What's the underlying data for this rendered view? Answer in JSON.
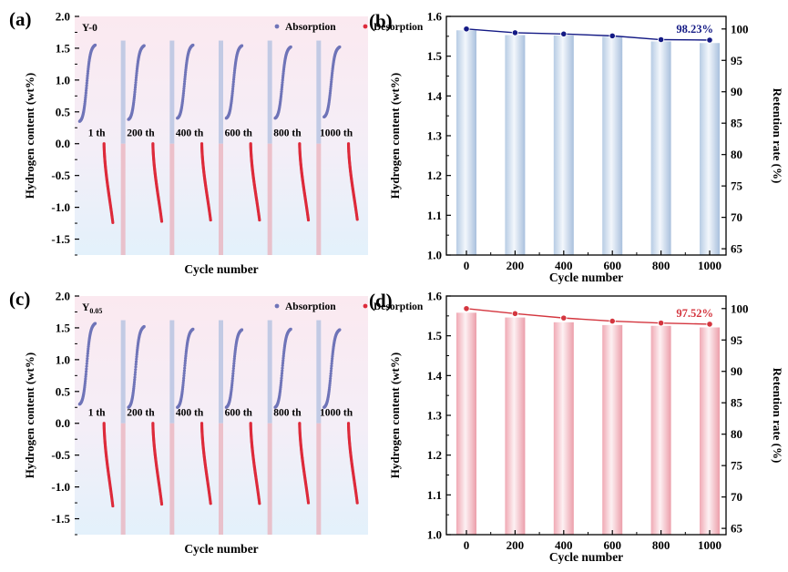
{
  "colors": {
    "absorption": "#6f74b8",
    "desorption": "#dd2a3a",
    "bar_blue": "#aac2dc",
    "bar_red": "#eaa0aa",
    "line_blue": "#141a85",
    "line_red": "#d4363f",
    "divider_blue": "#b8c4e2",
    "divider_red": "#eab0bb"
  },
  "chart_data": [
    {
      "panel": "(a)",
      "type": "scatter",
      "sample": "Y-0",
      "ylabel": "Hydrogen content (wt%)",
      "xlabel": "Cycle number",
      "ylim": [
        -1.75,
        2.0
      ],
      "yticks": [
        "2.0",
        "1.5",
        "1.0",
        "0.5",
        "0.0",
        "-0.5",
        "-1.0",
        "-1.5"
      ],
      "legend": {
        "absorption": "Absorption",
        "desorption": "Desorption"
      },
      "cycles": [
        "1 th",
        "200 th",
        "400 th",
        "600 th",
        "800 th",
        "1000 th"
      ],
      "absorption_start": [
        0.35,
        0.38,
        0.4,
        0.4,
        0.4,
        0.42
      ],
      "absorption_end": [
        1.55,
        1.54,
        1.55,
        1.54,
        1.52,
        1.52
      ],
      "desorption_start": [
        0.0,
        0.0,
        0.0,
        0.0,
        0.0,
        0.0
      ],
      "desorption_end": [
        -1.24,
        -1.22,
        -1.2,
        -1.2,
        -1.2,
        -1.19
      ]
    },
    {
      "panel": "(b)",
      "type": "bar+line",
      "xlabel": "Cycle number",
      "ylabel": "Hydrogen content (wt%)",
      "y2label": "Retention rate (%)",
      "categories": [
        "0",
        "200",
        "400",
        "600",
        "800",
        "1000"
      ],
      "ylim": [
        1.0,
        1.6
      ],
      "yticks": [
        "1.0",
        "1.1",
        "1.2",
        "1.3",
        "1.4",
        "1.5",
        "1.6"
      ],
      "y2lim": [
        64,
        102
      ],
      "y2ticks": [
        "65",
        "70",
        "75",
        "80",
        "85",
        "90",
        "95",
        "100"
      ],
      "bar_values": [
        1.565,
        1.553,
        1.552,
        1.549,
        1.537,
        1.533
      ],
      "retention": [
        100,
        99.4,
        99.2,
        98.9,
        98.3,
        98.23
      ],
      "annotation": "98.23%"
    },
    {
      "panel": "(c)",
      "type": "scatter",
      "sample": "Y",
      "sample_sub": "0.05",
      "ylabel": "Hydrogen content (wt%)",
      "xlabel": "Cycle number",
      "ylim": [
        -1.75,
        2.0
      ],
      "yticks": [
        "2.0",
        "1.5",
        "1.0",
        "0.5",
        "0.0",
        "-0.5",
        "-1.0",
        "-1.5"
      ],
      "legend": {
        "absorption": "Absorption",
        "desorption": "Desorption"
      },
      "cycles": [
        "1 th",
        "200 th",
        "400 th",
        "600 th",
        "800 th",
        "1000 th"
      ],
      "absorption_start": [
        0.3,
        0.25,
        0.25,
        0.25,
        0.25,
        0.25
      ],
      "absorption_end": [
        1.57,
        1.52,
        1.48,
        1.47,
        1.48,
        1.47
      ],
      "desorption_start": [
        0.0,
        0.0,
        0.0,
        0.0,
        0.0,
        0.0
      ],
      "desorption_end": [
        -1.3,
        -1.27,
        -1.26,
        -1.26,
        -1.25,
        -1.25
      ]
    },
    {
      "panel": "(d)",
      "type": "bar+line",
      "xlabel": "Cycle number",
      "ylabel": "Hydrogen content (wt%)",
      "y2label": "Retention rate (%)",
      "categories": [
        "0",
        "200",
        "400",
        "600",
        "800",
        "1000"
      ],
      "ylim": [
        1.0,
        1.6
      ],
      "yticks": [
        "1.0",
        "1.1",
        "1.2",
        "1.3",
        "1.4",
        "1.5",
        "1.6"
      ],
      "y2lim": [
        64,
        102
      ],
      "y2ticks": [
        "65",
        "70",
        "75",
        "80",
        "85",
        "90",
        "95",
        "100"
      ],
      "bar_values": [
        1.558,
        1.546,
        1.534,
        1.527,
        1.525,
        1.521
      ],
      "retention": [
        100,
        99.2,
        98.5,
        98.0,
        97.7,
        97.52
      ],
      "annotation": "97.52%"
    }
  ]
}
